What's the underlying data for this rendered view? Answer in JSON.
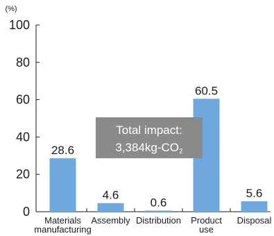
{
  "chart_data": {
    "type": "bar",
    "ylabel": "(%)",
    "ylim": [
      0,
      100
    ],
    "yticks": [
      0,
      20,
      40,
      60,
      80,
      100
    ],
    "categories": [
      [
        "Materials",
        "manufacturing"
      ],
      [
        "Assembly"
      ],
      [
        "Distribution"
      ],
      [
        "Product",
        "use"
      ],
      [
        "Disposal"
      ]
    ],
    "values": [
      28.6,
      4.6,
      0.6,
      60.5,
      5.6
    ],
    "value_labels": [
      "28.6",
      "4.6",
      "0.6",
      "60.5",
      "5.6"
    ],
    "annotation": {
      "line1": "Total impact:",
      "line2_main": "3,384kg-CO",
      "line2_subscript": "2"
    },
    "grid": false,
    "legend": "none"
  },
  "colors": {
    "bar": "#6fa8dc",
    "annotation_box": "#8a8a8a",
    "axis": "#1a1a1a"
  }
}
